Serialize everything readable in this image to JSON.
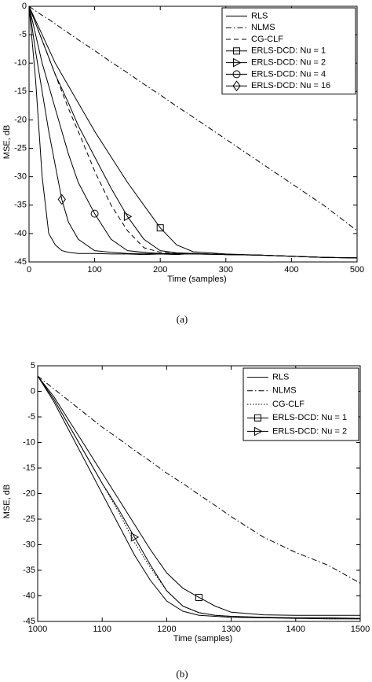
{
  "chart_data": [
    {
      "type": "line",
      "caption": "(a)",
      "xlabel": "Time (samples)",
      "ylabel": "MSE, dB",
      "x": [
        0,
        10,
        20,
        30,
        40,
        50,
        60,
        75,
        100,
        125,
        150,
        175,
        200,
        225,
        250,
        300,
        350,
        400,
        450,
        500
      ],
      "xlim": [
        0,
        500
      ],
      "xticks": [
        0,
        100,
        200,
        300,
        400,
        500
      ],
      "ylim": [
        -45,
        0
      ],
      "yticks": [
        0,
        -5,
        -10,
        -15,
        -20,
        -25,
        -30,
        -35,
        -40,
        -45
      ],
      "series": [
        {
          "name": "RLS",
          "color": "#000000",
          "dash": "solid",
          "values": [
            0,
            -13,
            -30,
            -40,
            -42,
            -43,
            -43.3,
            -43.5,
            -43.5,
            -43.6,
            -43.6,
            -43.7,
            -43.6,
            -43.7,
            -43.5,
            -43.7,
            -43.8,
            -44,
            -44.2,
            -44.3
          ]
        },
        {
          "name": "NLMS",
          "color": "#000000",
          "dash": "dashdot",
          "values": [
            0,
            -0.8,
            -1.6,
            -2.3,
            -3.1,
            -3.9,
            -4.7,
            -5.9,
            -7.8,
            -9.8,
            -11.7,
            -13.7,
            -15.6,
            -17.6,
            -19.5,
            -23.4,
            -27.3,
            -31.2,
            -35.1,
            -39.5
          ]
        },
        {
          "name": "CG-CLF",
          "color": "#000000",
          "dash": "dashed",
          "values": [
            0,
            -3,
            -6,
            -9,
            -12,
            -15,
            -18,
            -22,
            -29,
            -35,
            -39.5,
            -42.5,
            -43.3,
            -43.5,
            -43.5,
            -43.7,
            -43.8,
            -44,
            -44.2,
            -44.3
          ]
        },
        {
          "name": "ERLS-DCD: Nu = 1",
          "color": "#000000",
          "dash": "solid",
          "marker": "square",
          "values": [
            0,
            -2.5,
            -5,
            -7.5,
            -10,
            -12,
            -14,
            -17,
            -22,
            -26.5,
            -31,
            -35,
            -39,
            -42,
            -43.2,
            -43.6,
            -43.8,
            -44,
            -44.2,
            -44.3
          ]
        },
        {
          "name": "ERLS-DCD: Nu = 2",
          "color": "#000000",
          "dash": "solid",
          "marker": "triangle",
          "values": [
            0,
            -3,
            -6,
            -9,
            -12,
            -14.5,
            -17,
            -21,
            -26.5,
            -32,
            -37,
            -41,
            -43,
            -43.4,
            -43.5,
            -43.7,
            -43.8,
            -44,
            -44.2,
            -44.3
          ]
        },
        {
          "name": "ERLS-DCD: Nu = 4",
          "color": "#000000",
          "dash": "solid",
          "marker": "circle",
          "values": [
            0,
            -5,
            -10,
            -14,
            -18,
            -22,
            -26,
            -31,
            -36.5,
            -41,
            -43,
            -43.3,
            -43.5,
            -43.5,
            -43.6,
            -43.7,
            -43.8,
            -44,
            -44.2,
            -44.3
          ]
        },
        {
          "name": "ERLS-DCD: Nu = 16",
          "color": "#000000",
          "dash": "solid",
          "marker": "diamond",
          "values": [
            0,
            -8,
            -15,
            -22,
            -28,
            -34,
            -38,
            -41,
            -43,
            -43.3,
            -43.5,
            -43.5,
            -43.6,
            -43.6,
            -43.6,
            -43.7,
            -43.8,
            -44,
            -44.2,
            -44.3
          ]
        }
      ]
    },
    {
      "type": "line",
      "caption": "(b)",
      "xlabel": "Time (samples)",
      "ylabel": "MSE, dB",
      "x": [
        1000,
        1025,
        1050,
        1075,
        1100,
        1125,
        1150,
        1175,
        1200,
        1225,
        1250,
        1275,
        1300,
        1350,
        1400,
        1450,
        1500
      ],
      "xlim": [
        1000,
        1500
      ],
      "xticks": [
        1000,
        1100,
        1200,
        1300,
        1400,
        1500
      ],
      "ylim": [
        -45,
        5
      ],
      "yticks": [
        5,
        0,
        -5,
        -10,
        -15,
        -20,
        -25,
        -30,
        -35,
        -40,
        -45
      ],
      "series": [
        {
          "name": "RLS",
          "color": "#000000",
          "dash": "solid",
          "values": [
            3,
            -2,
            -8,
            -14,
            -20,
            -26,
            -32,
            -37,
            -41,
            -43,
            -43.8,
            -44,
            -44.2,
            -44.3,
            -44.4,
            -44.5,
            -44.5
          ]
        },
        {
          "name": "NLMS",
          "color": "#000000",
          "dash": "dashdot",
          "values": [
            3,
            0.5,
            -2,
            -4.5,
            -7,
            -9.2,
            -11.5,
            -13.7,
            -16,
            -18,
            -20.2,
            -22.3,
            -24.5,
            -28.5,
            -31.5,
            -34,
            -37.5
          ]
        },
        {
          "name": "CG-CLF",
          "color": "#000000",
          "dash": "dotted",
          "values": [
            3,
            -1.5,
            -7,
            -12.5,
            -18,
            -23.5,
            -29.5,
            -34.5,
            -39,
            -42,
            -43.3,
            -43.8,
            -44,
            -44.2,
            -44.3,
            -44.4,
            -44.5
          ]
        },
        {
          "name": "ERLS-DCD: Nu = 1",
          "color": "#000000",
          "dash": "solid",
          "marker": "square",
          "values": [
            3,
            -1,
            -6,
            -11,
            -16,
            -21,
            -26,
            -31,
            -35.5,
            -38.5,
            -40.3,
            -42,
            -43.2,
            -43.7,
            -43.8,
            -43.8,
            -43.8
          ]
        },
        {
          "name": "ERLS-DCD: Nu = 2",
          "color": "#000000",
          "dash": "solid",
          "marker": "triangle",
          "values": [
            3,
            -1.5,
            -7,
            -12.5,
            -18,
            -23,
            -28.5,
            -34,
            -39,
            -42,
            -43.3,
            -43.8,
            -44,
            -44.2,
            -44.3,
            -44.3,
            -44.4
          ]
        }
      ]
    }
  ]
}
